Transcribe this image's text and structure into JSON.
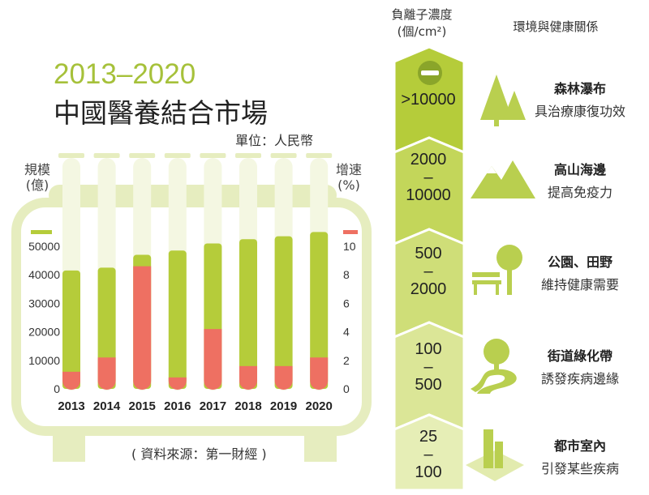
{
  "header": {
    "years": "2013–2020",
    "title": "中國醫養結合市場",
    "unit": "單位：人民幣"
  },
  "axis": {
    "left_label": "規模\n(億)",
    "right_label": "增速\n(%)"
  },
  "source": "( 資料來源：第一財經 )",
  "colors": {
    "green": "#b5cc3a",
    "light_green": "#dde7a6",
    "red": "#ee7062",
    "frame": "#e6edbf"
  },
  "chart_data": {
    "type": "bar",
    "categories": [
      "2013",
      "2014",
      "2015",
      "2016",
      "2017",
      "2018",
      "2019",
      "2020"
    ],
    "series": [
      {
        "name": "規模",
        "values": [
          41500,
          42500,
          47000,
          48500,
          51000,
          52500,
          53500,
          55000
        ],
        "axis": "left"
      },
      {
        "name": "增速",
        "values": [
          1.2,
          2.2,
          8.6,
          0.8,
          4.2,
          1.6,
          1.6,
          2.2
        ],
        "axis": "right"
      }
    ],
    "left_ticks": [
      "50000",
      "40000",
      "30000",
      "20000",
      "10000",
      "0"
    ],
    "right_ticks": [
      "10",
      "8",
      "6",
      "4",
      "2",
      "0"
    ],
    "ylim_left": [
      0,
      50000
    ],
    "ylim_right": [
      0,
      10
    ]
  },
  "ion_panel": {
    "header_1": "負離子濃度",
    "header_2": "(個/cm²)",
    "env_header": "環境與健康關係",
    "levels": [
      {
        "range_top": ">10000",
        "range_bottom": "",
        "icon": "forest-icon",
        "env": "森林瀑布",
        "effect": "具治療康復功效"
      },
      {
        "range_top": "2000",
        "range_bottom": "10000",
        "icon": "mountain-icon",
        "env": "高山海邊",
        "effect": "提高免疫力"
      },
      {
        "range_top": "500",
        "range_bottom": "2000",
        "icon": "park-bench-icon",
        "env": "公園、田野",
        "effect": "維持健康需要"
      },
      {
        "range_top": "100",
        "range_bottom": "500",
        "icon": "tree-road-icon",
        "env": "街道綠化帶",
        "effect": "誘發疾病邊緣"
      },
      {
        "range_top": "25",
        "range_bottom": "100",
        "icon": "buildings-icon",
        "env": "都市室內",
        "effect": "引發某些疾病"
      }
    ]
  }
}
